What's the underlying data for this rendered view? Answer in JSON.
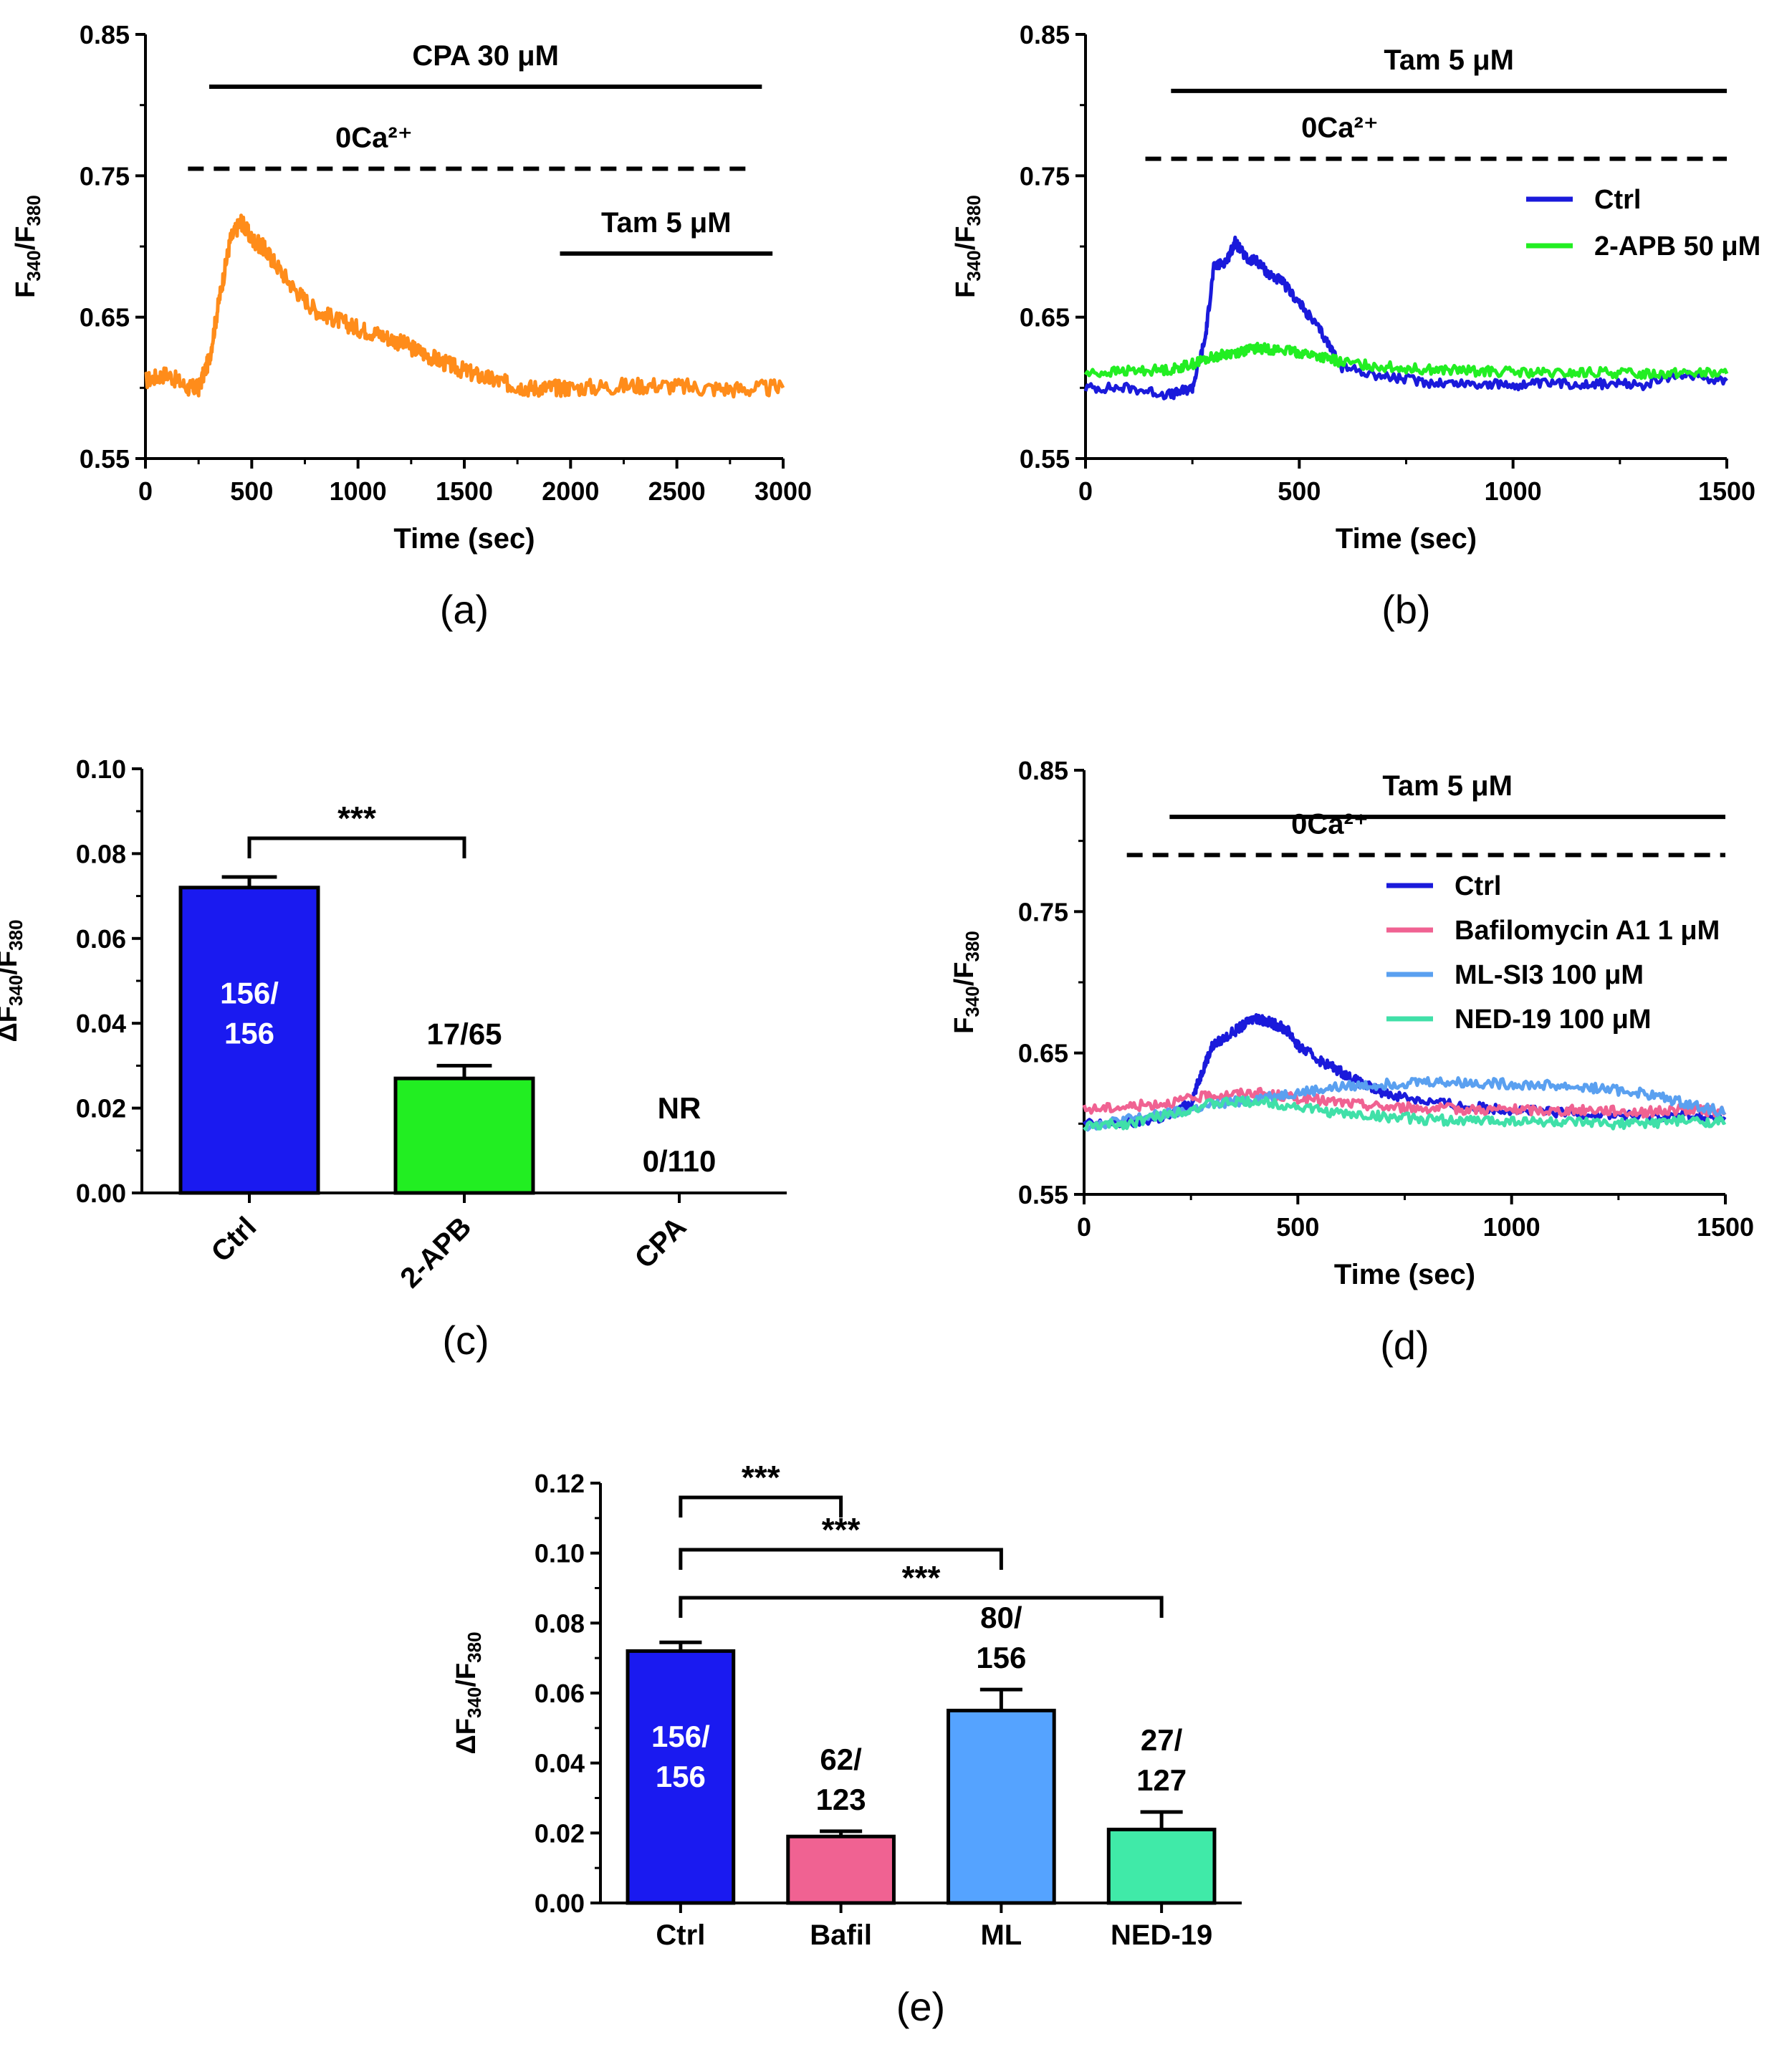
{
  "chart_data": [
    {
      "panel": "(a)",
      "type": "line",
      "ylabel_main": "F",
      "ylabel_sub1": "340",
      "ylabel_sep": "/F",
      "ylabel_sub2": "380",
      "xlabel": "Time (sec)",
      "xlim": [
        0,
        3000
      ],
      "ylim": [
        0.55,
        0.85
      ],
      "xticks": [
        0,
        500,
        1000,
        1500,
        2000,
        2500,
        3000
      ],
      "yticks": [
        "0.55",
        "0.65",
        "0.75",
        "0.85"
      ],
      "conditions": [
        {
          "label": "CPA 30 μM",
          "style": "solid",
          "x_start": 300,
          "x_end": 2900,
          "y": 0.813
        },
        {
          "label": "0Ca²⁺",
          "style": "dashed",
          "x_start": 200,
          "x_end": 2850,
          "y": 0.755
        },
        {
          "label": "Tam 5 μM",
          "style": "solid",
          "x_start": 1950,
          "x_end": 2950,
          "y": 0.695
        }
      ],
      "series": [
        {
          "name": "trace",
          "color": "#ff8c1a",
          "x": [
            0,
            100,
            200,
            250,
            300,
            350,
            400,
            450,
            500,
            550,
            600,
            700,
            800,
            900,
            1000,
            1100,
            1200,
            1300,
            1400,
            1500,
            1600,
            1700,
            1800,
            1900,
            2000,
            2200,
            2400,
            2600,
            2800,
            3000
          ],
          "y": [
            0.605,
            0.61,
            0.6,
            0.6,
            0.62,
            0.665,
            0.705,
            0.718,
            0.705,
            0.7,
            0.69,
            0.67,
            0.655,
            0.648,
            0.642,
            0.638,
            0.632,
            0.625,
            0.618,
            0.612,
            0.607,
            0.603,
            0.6,
            0.6,
            0.6,
            0.601,
            0.602,
            0.6,
            0.599,
            0.6
          ]
        }
      ]
    },
    {
      "panel": "(b)",
      "type": "line",
      "ylabel_main": "F",
      "ylabel_sub1": "340",
      "ylabel_sep": "/F",
      "ylabel_sub2": "380",
      "xlabel": "Time (sec)",
      "xlim": [
        0,
        1500
      ],
      "ylim": [
        0.55,
        0.85
      ],
      "xticks": [
        0,
        500,
        1000,
        1500
      ],
      "yticks": [
        "0.55",
        "0.65",
        "0.75",
        "0.85"
      ],
      "conditions": [
        {
          "label": "Tam 5 μM",
          "style": "solid",
          "x_start": 200,
          "x_end": 1500,
          "y": 0.81
        },
        {
          "label": "0Ca²⁺",
          "style": "dashed",
          "x_start": 140,
          "x_end": 1500,
          "y": 0.762
        }
      ],
      "legend": [
        "Ctrl",
        "2-APB 50 μM"
      ],
      "series": [
        {
          "name": "Ctrl",
          "color": "#1a1adb",
          "x": [
            0,
            100,
            200,
            250,
            280,
            300,
            330,
            350,
            380,
            400,
            430,
            460,
            500,
            550,
            600,
            700,
            800,
            900,
            1000,
            1100,
            1200,
            1300,
            1400,
            1500
          ],
          "y": [
            0.6,
            0.6,
            0.595,
            0.6,
            0.635,
            0.685,
            0.69,
            0.703,
            0.69,
            0.69,
            0.68,
            0.675,
            0.66,
            0.64,
            0.615,
            0.608,
            0.604,
            0.603,
            0.602,
            0.603,
            0.603,
            0.602,
            0.61,
            0.605
          ]
        },
        {
          "name": "2-APB 50 μM",
          "color": "#22ee22",
          "x": [
            0,
            100,
            200,
            250,
            300,
            350,
            400,
            450,
            500,
            550,
            600,
            700,
            800,
            900,
            1000,
            1100,
            1200,
            1300,
            1400,
            1500
          ],
          "y": [
            0.61,
            0.612,
            0.613,
            0.617,
            0.622,
            0.625,
            0.628,
            0.627,
            0.625,
            0.622,
            0.618,
            0.615,
            0.613,
            0.612,
            0.611,
            0.61,
            0.611,
            0.61,
            0.611,
            0.61
          ]
        }
      ]
    },
    {
      "panel": "(c)",
      "type": "bar",
      "ylabel_main": "ΔF",
      "ylabel_sub1": "340",
      "ylabel_sep": "/F",
      "ylabel_sub2": "380",
      "ylim": [
        0,
        0.1
      ],
      "yticks": [
        "0.00",
        "0.02",
        "0.04",
        "0.06",
        "0.08",
        "0.10"
      ],
      "categories": [
        "Ctrl",
        "2-APB",
        "CPA"
      ],
      "values": [
        0.072,
        0.027,
        0
      ],
      "errors": [
        0.0025,
        0.003,
        0
      ],
      "colors": [
        "#1a1af0",
        "#22ee22",
        "#ffffff"
      ],
      "bar_labels": [
        {
          "lines": [
            "156/",
            "156"
          ],
          "inside": true
        },
        {
          "lines": [
            "17/65"
          ],
          "inside": false
        },
        {
          "lines": [
            "NR",
            "0/110"
          ],
          "inside": false
        }
      ],
      "significance": [
        {
          "from": 0,
          "to": 1,
          "label": "***"
        }
      ]
    },
    {
      "panel": "(d)",
      "type": "line",
      "ylabel_main": "F",
      "ylabel_sub1": "340",
      "ylabel_sep": "/F",
      "ylabel_sub2": "380",
      "xlabel": "Time (sec)",
      "xlim": [
        0,
        1500
      ],
      "ylim": [
        0.55,
        0.85
      ],
      "xticks": [
        0,
        500,
        1000,
        1500
      ],
      "yticks": [
        "0.55",
        "0.65",
        "0.75",
        "0.85"
      ],
      "conditions": [
        {
          "label": "Tam 5 μM",
          "style": "solid",
          "x_start": 200,
          "x_end": 1500,
          "y": 0.817
        },
        {
          "label": "0Ca²⁺",
          "style": "dashed",
          "x_start": 100,
          "x_end": 1500,
          "y": 0.79
        }
      ],
      "legend": [
        "Ctrl",
        "Bafilomycin A1 1 μM",
        "ML-SI3 100 μM",
        "NED-19 100 μM"
      ],
      "series": [
        {
          "name": "Ctrl",
          "color": "#1a1adb",
          "x": [
            0,
            100,
            200,
            250,
            280,
            300,
            350,
            400,
            420,
            450,
            480,
            500,
            550,
            600,
            650,
            700,
            800,
            900,
            1000,
            1100,
            1200,
            1300,
            1400,
            1500
          ],
          "y": [
            0.6,
            0.6,
            0.605,
            0.615,
            0.64,
            0.655,
            0.665,
            0.675,
            0.673,
            0.67,
            0.665,
            0.655,
            0.645,
            0.637,
            0.628,
            0.622,
            0.616,
            0.612,
            0.61,
            0.608,
            0.607,
            0.605,
            0.606,
            0.603
          ]
        },
        {
          "name": "Bafilomycin A1 1 μM",
          "color": "#f06292",
          "x": [
            0,
            100,
            200,
            300,
            400,
            500,
            600,
            700,
            800,
            900,
            1000,
            1100,
            1200,
            1300,
            1400,
            1500
          ],
          "y": [
            0.61,
            0.612,
            0.615,
            0.62,
            0.622,
            0.618,
            0.615,
            0.612,
            0.611,
            0.61,
            0.61,
            0.609,
            0.61,
            0.608,
            0.61,
            0.608
          ]
        },
        {
          "name": "ML-SI3 100 μM",
          "color": "#5aa0f0",
          "x": [
            0,
            100,
            200,
            300,
            400,
            500,
            600,
            700,
            800,
            900,
            1000,
            1100,
            1200,
            1300,
            1400,
            1500
          ],
          "y": [
            0.598,
            0.603,
            0.607,
            0.613,
            0.618,
            0.622,
            0.626,
            0.628,
            0.63,
            0.629,
            0.628,
            0.627,
            0.625,
            0.622,
            0.615,
            0.608
          ]
        },
        {
          "name": "NED-19 100 μM",
          "color": "#40e0a8",
          "x": [
            0,
            100,
            200,
            300,
            400,
            500,
            600,
            700,
            800,
            900,
            1000,
            1100,
            1200,
            1300,
            1400,
            1500
          ],
          "y": [
            0.598,
            0.6,
            0.607,
            0.614,
            0.616,
            0.612,
            0.607,
            0.605,
            0.603,
            0.602,
            0.602,
            0.601,
            0.6,
            0.6,
            0.602,
            0.601
          ]
        }
      ]
    },
    {
      "panel": "(e)",
      "type": "bar",
      "ylabel_main": "ΔF",
      "ylabel_sub1": "340",
      "ylabel_sep": "/F",
      "ylabel_sub2": "380",
      "ylim": [
        0,
        0.12
      ],
      "yticks": [
        "0.00",
        "0.02",
        "0.04",
        "0.06",
        "0.08",
        "0.10",
        "0.12"
      ],
      "categories": [
        "Ctrl",
        "Bafil",
        "ML",
        "NED-19"
      ],
      "values": [
        0.072,
        0.019,
        0.055,
        0.021
      ],
      "errors": [
        0.0025,
        0.0015,
        0.006,
        0.005
      ],
      "colors": [
        "#1a1af0",
        "#f06292",
        "#55a3ff",
        "#40eaa8"
      ],
      "bar_labels": [
        {
          "lines": [
            "156/",
            "156"
          ],
          "inside": true
        },
        {
          "lines": [
            "62/",
            "123"
          ],
          "inside": false
        },
        {
          "lines": [
            "80/",
            "156"
          ],
          "inside": false
        },
        {
          "lines": [
            "27/",
            "127"
          ],
          "inside": false
        }
      ],
      "significance": [
        {
          "from": 0,
          "to": 1,
          "label": "***"
        },
        {
          "from": 0,
          "to": 2,
          "label": "***"
        },
        {
          "from": 0,
          "to": 3,
          "label": "***"
        }
      ]
    }
  ]
}
